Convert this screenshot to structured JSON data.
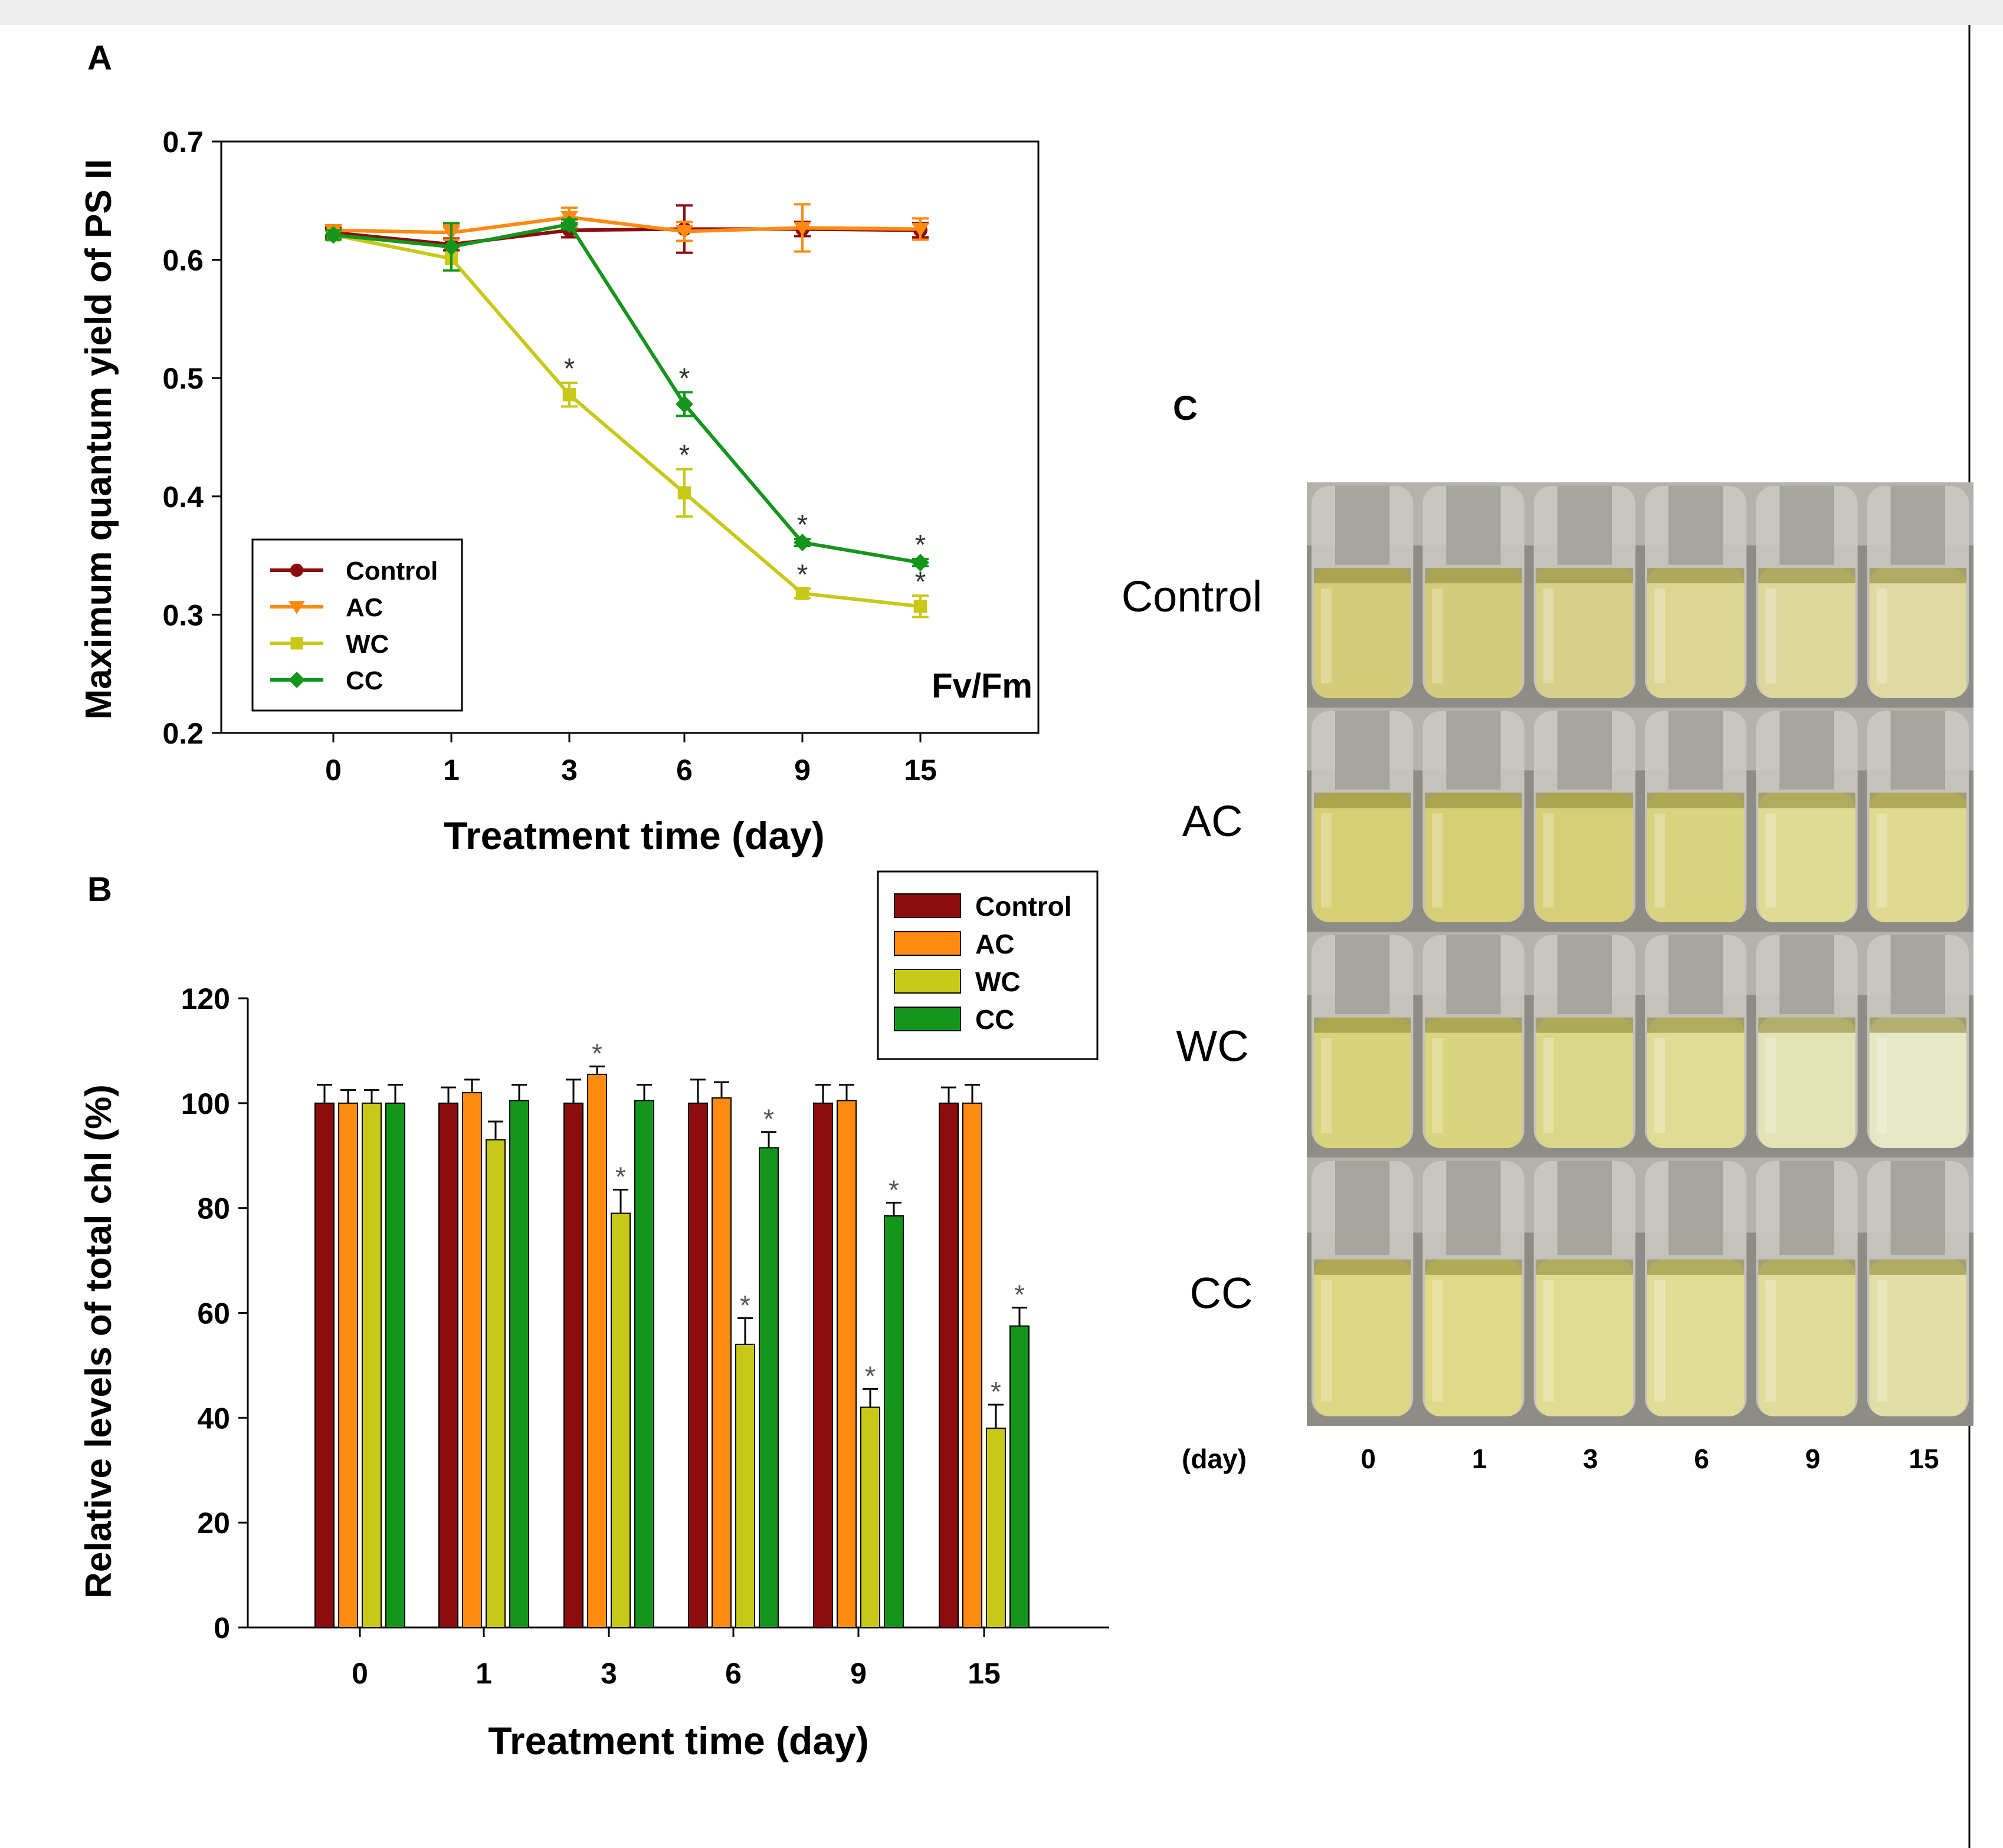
{
  "panels": {
    "a": {
      "label": "A"
    },
    "b": {
      "label": "B"
    },
    "c": {
      "label": "C"
    }
  },
  "colors": {
    "Control": "#8b0d0d",
    "AC": "#ff8a12",
    "WC": "#c8c818",
    "CC": "#14961c"
  },
  "chart_data": [
    {
      "panel": "A",
      "type": "line",
      "ylabel": "Maximum quantum yield of PS II",
      "xlabel": "Treatment time (day)",
      "annotation": "Fv/Fm",
      "categories": [
        "0",
        "1",
        "3",
        "6",
        "9",
        "15"
      ],
      "ylim": [
        0.2,
        0.7
      ],
      "yticks": [
        0.2,
        0.3,
        0.4,
        0.5,
        0.6,
        0.7
      ],
      "legend": "bottom-left",
      "series": [
        {
          "name": "Control",
          "marker": "circle",
          "values": [
            0.623,
            0.613,
            0.625,
            0.626,
            0.626,
            0.625
          ],
          "errors": [
            0.004,
            0.005,
            0.006,
            0.02,
            0.006,
            0.006
          ],
          "sig": [
            false,
            false,
            false,
            false,
            false,
            false
          ]
        },
        {
          "name": "AC",
          "marker": "triangle-down",
          "values": [
            0.625,
            0.623,
            0.636,
            0.624,
            0.627,
            0.626
          ],
          "errors": [
            0.004,
            0.006,
            0.008,
            0.008,
            0.02,
            0.009
          ],
          "sig": [
            false,
            false,
            false,
            false,
            false,
            false
          ]
        },
        {
          "name": "WC",
          "marker": "square",
          "values": [
            0.621,
            0.601,
            0.486,
            0.403,
            0.318,
            0.307
          ],
          "errors": [
            0.004,
            0.01,
            0.01,
            0.02,
            0.004,
            0.009
          ],
          "sig": [
            false,
            false,
            true,
            true,
            true,
            true
          ]
        },
        {
          "name": "CC",
          "marker": "diamond",
          "values": [
            0.621,
            0.611,
            0.63,
            0.478,
            0.361,
            0.344
          ],
          "errors": [
            0.004,
            0.02,
            0.004,
            0.01,
            0.003,
            0.003
          ],
          "sig": [
            false,
            false,
            false,
            true,
            true,
            true
          ]
        }
      ],
      "sig_marker": "*"
    },
    {
      "panel": "B",
      "type": "bar",
      "ylabel": "Relative levels of total chl (%)",
      "xlabel": "Treatment time (day)",
      "categories": [
        "0",
        "1",
        "3",
        "6",
        "9",
        "15"
      ],
      "ylim": [
        0,
        120
      ],
      "yticks": [
        0,
        20,
        40,
        60,
        80,
        100,
        120
      ],
      "legend": "top-right",
      "series": [
        {
          "name": "Control",
          "values": [
            100,
            100,
            100,
            100,
            100,
            100
          ],
          "errors": [
            3.5,
            3,
            4.5,
            4.5,
            3.5,
            3
          ],
          "sig": [
            false,
            false,
            false,
            false,
            false,
            false
          ]
        },
        {
          "name": "AC",
          "values": [
            100,
            102,
            105.5,
            101,
            100.5,
            100
          ],
          "errors": [
            2.5,
            2.5,
            1.5,
            3,
            3,
            3.5
          ],
          "sig": [
            false,
            false,
            true,
            false,
            false,
            false
          ]
        },
        {
          "name": "WC",
          "values": [
            100,
            93,
            79,
            54,
            42,
            38
          ],
          "errors": [
            2.5,
            3.5,
            4.5,
            5,
            3.5,
            4.5
          ],
          "sig": [
            false,
            false,
            true,
            true,
            true,
            true
          ]
        },
        {
          "name": "CC",
          "values": [
            100,
            100.5,
            100.5,
            91.5,
            78.5,
            57.5
          ],
          "errors": [
            3.5,
            3,
            3,
            3,
            2.5,
            3.5
          ],
          "sig": [
            false,
            false,
            false,
            true,
            true,
            true
          ]
        }
      ],
      "sig_marker": "*"
    }
  ],
  "photo": {
    "rows": [
      "Control",
      "AC",
      "WC",
      "CC"
    ],
    "day_label": "(day)",
    "days": [
      "0",
      "1",
      "3",
      "6",
      "9",
      "15"
    ],
    "tube_colors": [
      [
        "#d4cc78",
        "#d3cc7c",
        "#d7d08a",
        "#dcd594",
        "#ddd79c",
        "#dfd9a2"
      ],
      [
        "#d6cf74",
        "#d6cf76",
        "#d6cf78",
        "#d9d27e",
        "#dedb94",
        "#dfda90"
      ],
      [
        "#d8d27a",
        "#d9d47e",
        "#dbd78a",
        "#dfdc98",
        "#e3e3b6",
        "#e6e7c4"
      ],
      [
        "#ddd682",
        "#dfd988",
        "#e1dc94",
        "#e1dd98",
        "#e0dd9c",
        "#e1dea6"
      ]
    ]
  }
}
